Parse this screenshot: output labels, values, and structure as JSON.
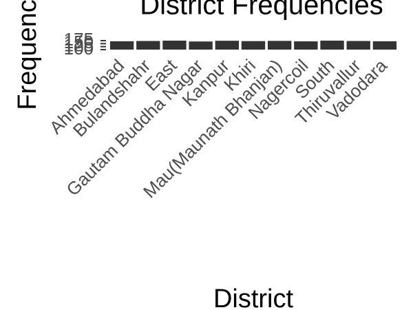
{
  "chart_data": {
    "type": "bar",
    "title": "District Frequencies",
    "x_label": "District",
    "y_label": "Frequency",
    "categories": [
      "Ahmedabad",
      "Bulandshahr",
      "East",
      "Gautam Buddha Nagar",
      "Kanpur",
      "Khiri",
      "Mau(Maunath Bhanjan)",
      "Nagercoil",
      "South",
      "Thiruvallur",
      "Vadodara"
    ],
    "values": [
      170,
      172,
      175,
      168,
      174,
      171,
      173,
      169,
      175,
      172,
      170
    ],
    "color": "#333333",
    "ylim": [
      100,
      175
    ],
    "yticks": [
      100,
      125,
      150,
      175
    ],
    "grid": false
  }
}
